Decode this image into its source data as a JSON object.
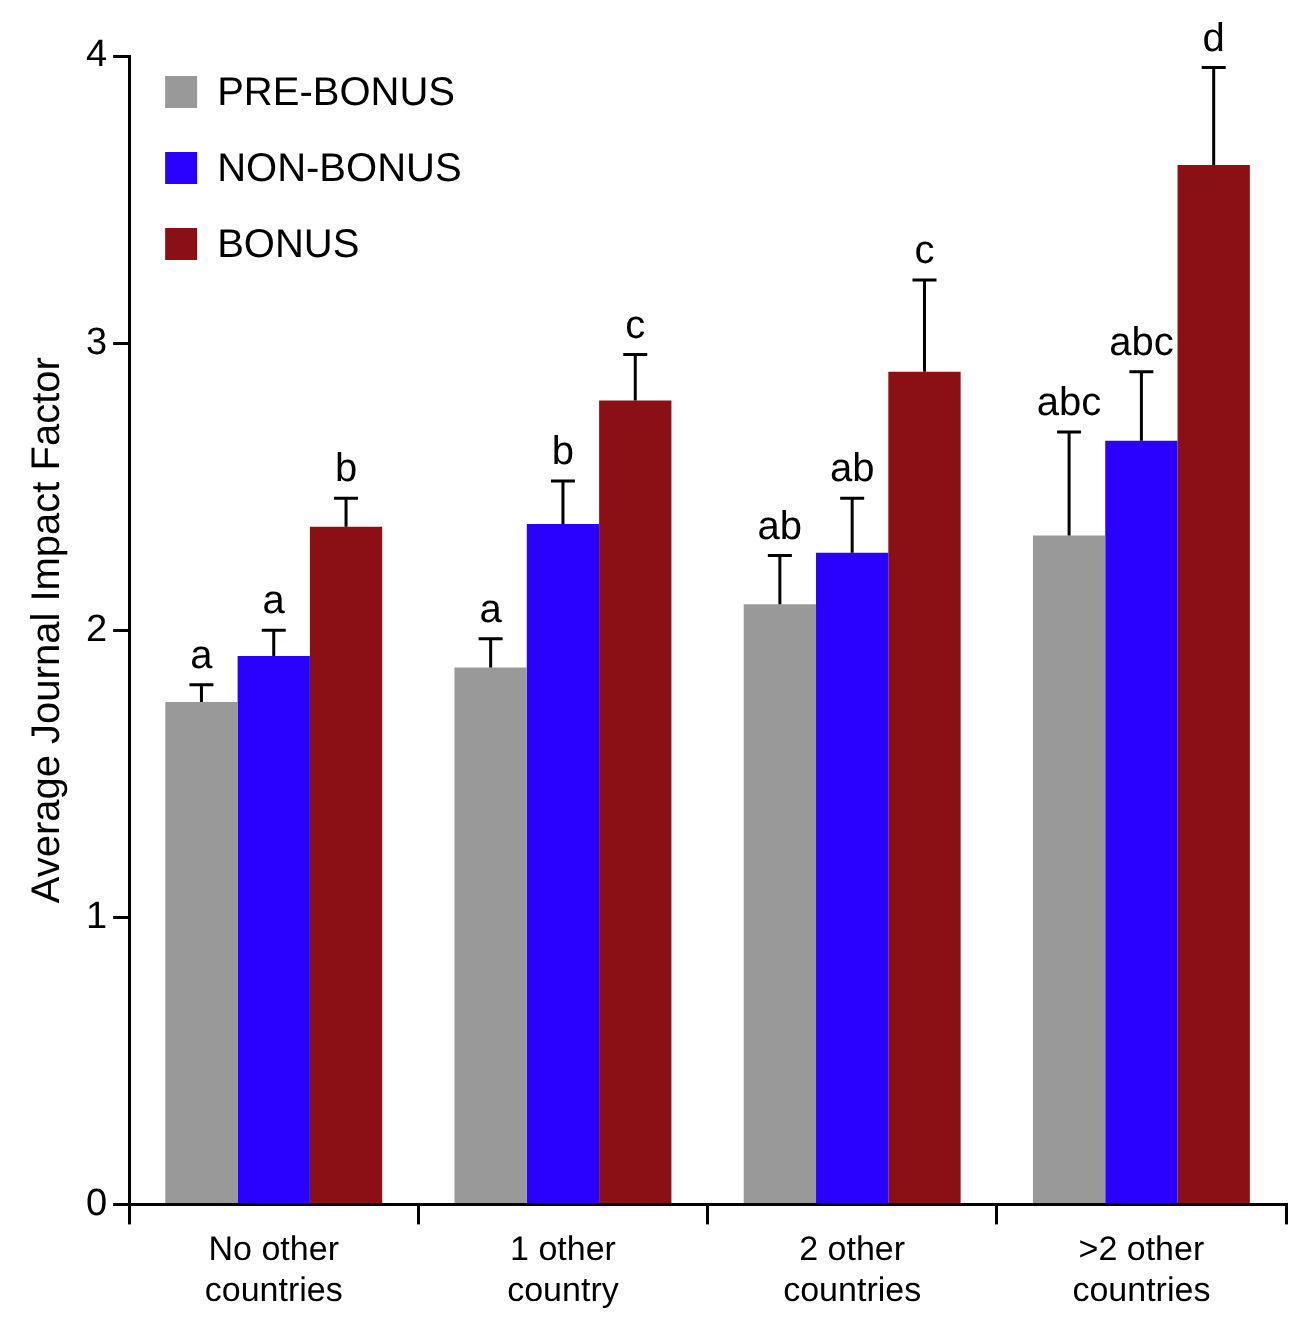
{
  "chart_data": {
    "type": "bar",
    "ylabel": "Average Journal Impact Factor",
    "categories": [
      "No other countries",
      "1 other country",
      "2 other countries",
      ">2 other countries"
    ],
    "series": [
      {
        "name": "PRE-BONUS",
        "color": "#999999",
        "values": [
          1.75,
          1.87,
          2.09,
          2.33
        ],
        "errors": [
          0.06,
          0.1,
          0.17,
          0.36
        ]
      },
      {
        "name": "NON-BONUS",
        "color": "#2a00ff",
        "values": [
          1.91,
          2.37,
          2.27,
          2.66
        ],
        "errors": [
          0.09,
          0.15,
          0.19,
          0.24
        ]
      },
      {
        "name": "BONUS",
        "color": "#8b1015",
        "values": [
          2.36,
          2.8,
          2.9,
          3.62
        ],
        "errors": [
          0.1,
          0.16,
          0.32,
          0.34
        ]
      }
    ],
    "ylim": [
      0,
      4
    ],
    "yticks": [
      0,
      1,
      2,
      3,
      4
    ],
    "grid": false,
    "legend": "top left",
    "annotations": [
      "a",
      "a",
      "b",
      "a",
      "b",
      "c",
      "ab",
      "ab",
      "c",
      "abc",
      "abc",
      "d"
    ]
  }
}
